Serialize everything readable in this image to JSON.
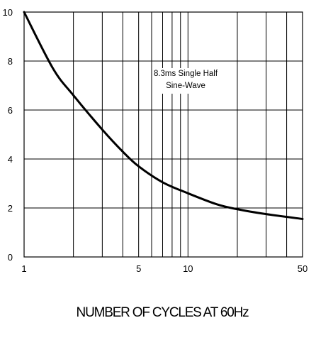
{
  "chart_data": {
    "type": "line",
    "title": "",
    "xlabel": "NUMBER OF CYCLES AT 60Hz",
    "ylabel": "",
    "x_scale": "log",
    "xlim": [
      1,
      50
    ],
    "ylim": [
      0,
      10
    ],
    "grid": true,
    "x_gridlines": [
      1,
      2,
      3,
      4,
      5,
      6,
      7,
      8,
      9,
      10,
      20,
      30,
      40,
      50
    ],
    "x_tick_labels": [
      {
        "value": 1,
        "label": "1"
      },
      {
        "value": 5,
        "label": "5"
      },
      {
        "value": 10,
        "label": "10"
      },
      {
        "value": 50,
        "label": "50"
      }
    ],
    "y_ticks": [
      {
        "value": 0,
        "label": "0"
      },
      {
        "value": 2,
        "label": "2"
      },
      {
        "value": 4,
        "label": "4"
      },
      {
        "value": 6,
        "label": "6"
      },
      {
        "value": 8,
        "label": "8"
      },
      {
        "value": 10,
        "label": "10"
      }
    ],
    "annotation": [
      "8.3ms Single Half",
      "Sine-Wave"
    ],
    "series": [
      {
        "x": [
          1,
          1.5,
          2,
          3,
          4,
          5,
          7,
          10,
          15,
          20,
          30,
          50
        ],
        "values": [
          10,
          7.7,
          6.6,
          5.2,
          4.3,
          3.7,
          3.05,
          2.6,
          2.15,
          1.95,
          1.75,
          1.55
        ]
      }
    ]
  }
}
